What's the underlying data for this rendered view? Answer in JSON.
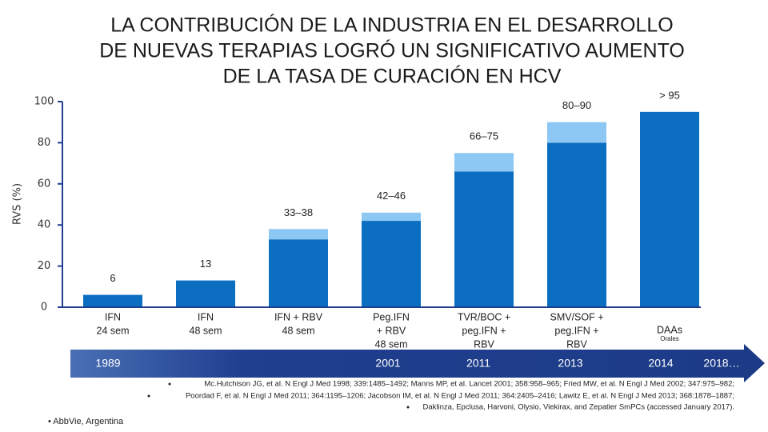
{
  "chart_data": {
    "type": "bar",
    "title": [
      "LA CONTRIBUCIÓN DE LA INDUSTRIA EN EL DESARROLLO",
      "DE NUEVAS TERAPIAS LOGRÓ UN SIGNIFICATIVO AUMENTO",
      "DE LA TASA DE CURACIÓN EN HCV"
    ],
    "y_label": "RVS (%)",
    "categories": [
      [
        "IFN",
        "24 sem"
      ],
      [
        "IFN",
        "48 sem"
      ],
      [
        "IFN + RBV",
        "48 sem"
      ],
      [
        "Peg.IFN",
        "+ RBV",
        "48 sem"
      ],
      [
        "TVR/BOC +",
        "peg.IFN +",
        "RBV"
      ],
      [
        "SMV/SOF +",
        "peg.IFN +",
        "RBV"
      ],
      [
        "DAAs"
      ]
    ],
    "category_note": "Orales",
    "series": [
      {
        "color": "#0b6ec0",
        "values": [
          6,
          13,
          33,
          42,
          66,
          80,
          95
        ],
        "value_labels": [
          "6",
          "13",
          "33–38",
          "42–46",
          "66–75",
          "80–90",
          "> 95"
        ]
      },
      {
        "color": "#8dc8f4",
        "values": [
          null,
          null,
          5,
          4,
          9,
          10,
          null
        ]
      }
    ],
    "ylim": [
      0,
      100
    ],
    "yticks": [
      0,
      20,
      40,
      60,
      80,
      100
    ],
    "timeline": [
      "1989",
      "2001",
      "2011",
      "2013",
      "2014",
      "2018…"
    ]
  },
  "references": [
    "Mc.Hutchison JG, et al. N Engl J Med 1998; 339:1485–1492; Manns MP, et al. Lancet 2001; 358:958–965; Fried MW, et al. N Engl J Med 2002; 347:975–982;",
    "Poordad F, et al. N Engl J Med 2011; 364:1195–1206; Jacobson IM, et al. N Engl J Med 2011; 364:2405–2416; Lawitz E, et al. N Engl J Med 2013; 368:1878–1887;",
    "Daklinza, Epclusa, Harvoni, Olysio, Viekirax, and Zepatier SmPCs (accessed January 2017)."
  ],
  "footer": "•  AbbVie, Argentina"
}
